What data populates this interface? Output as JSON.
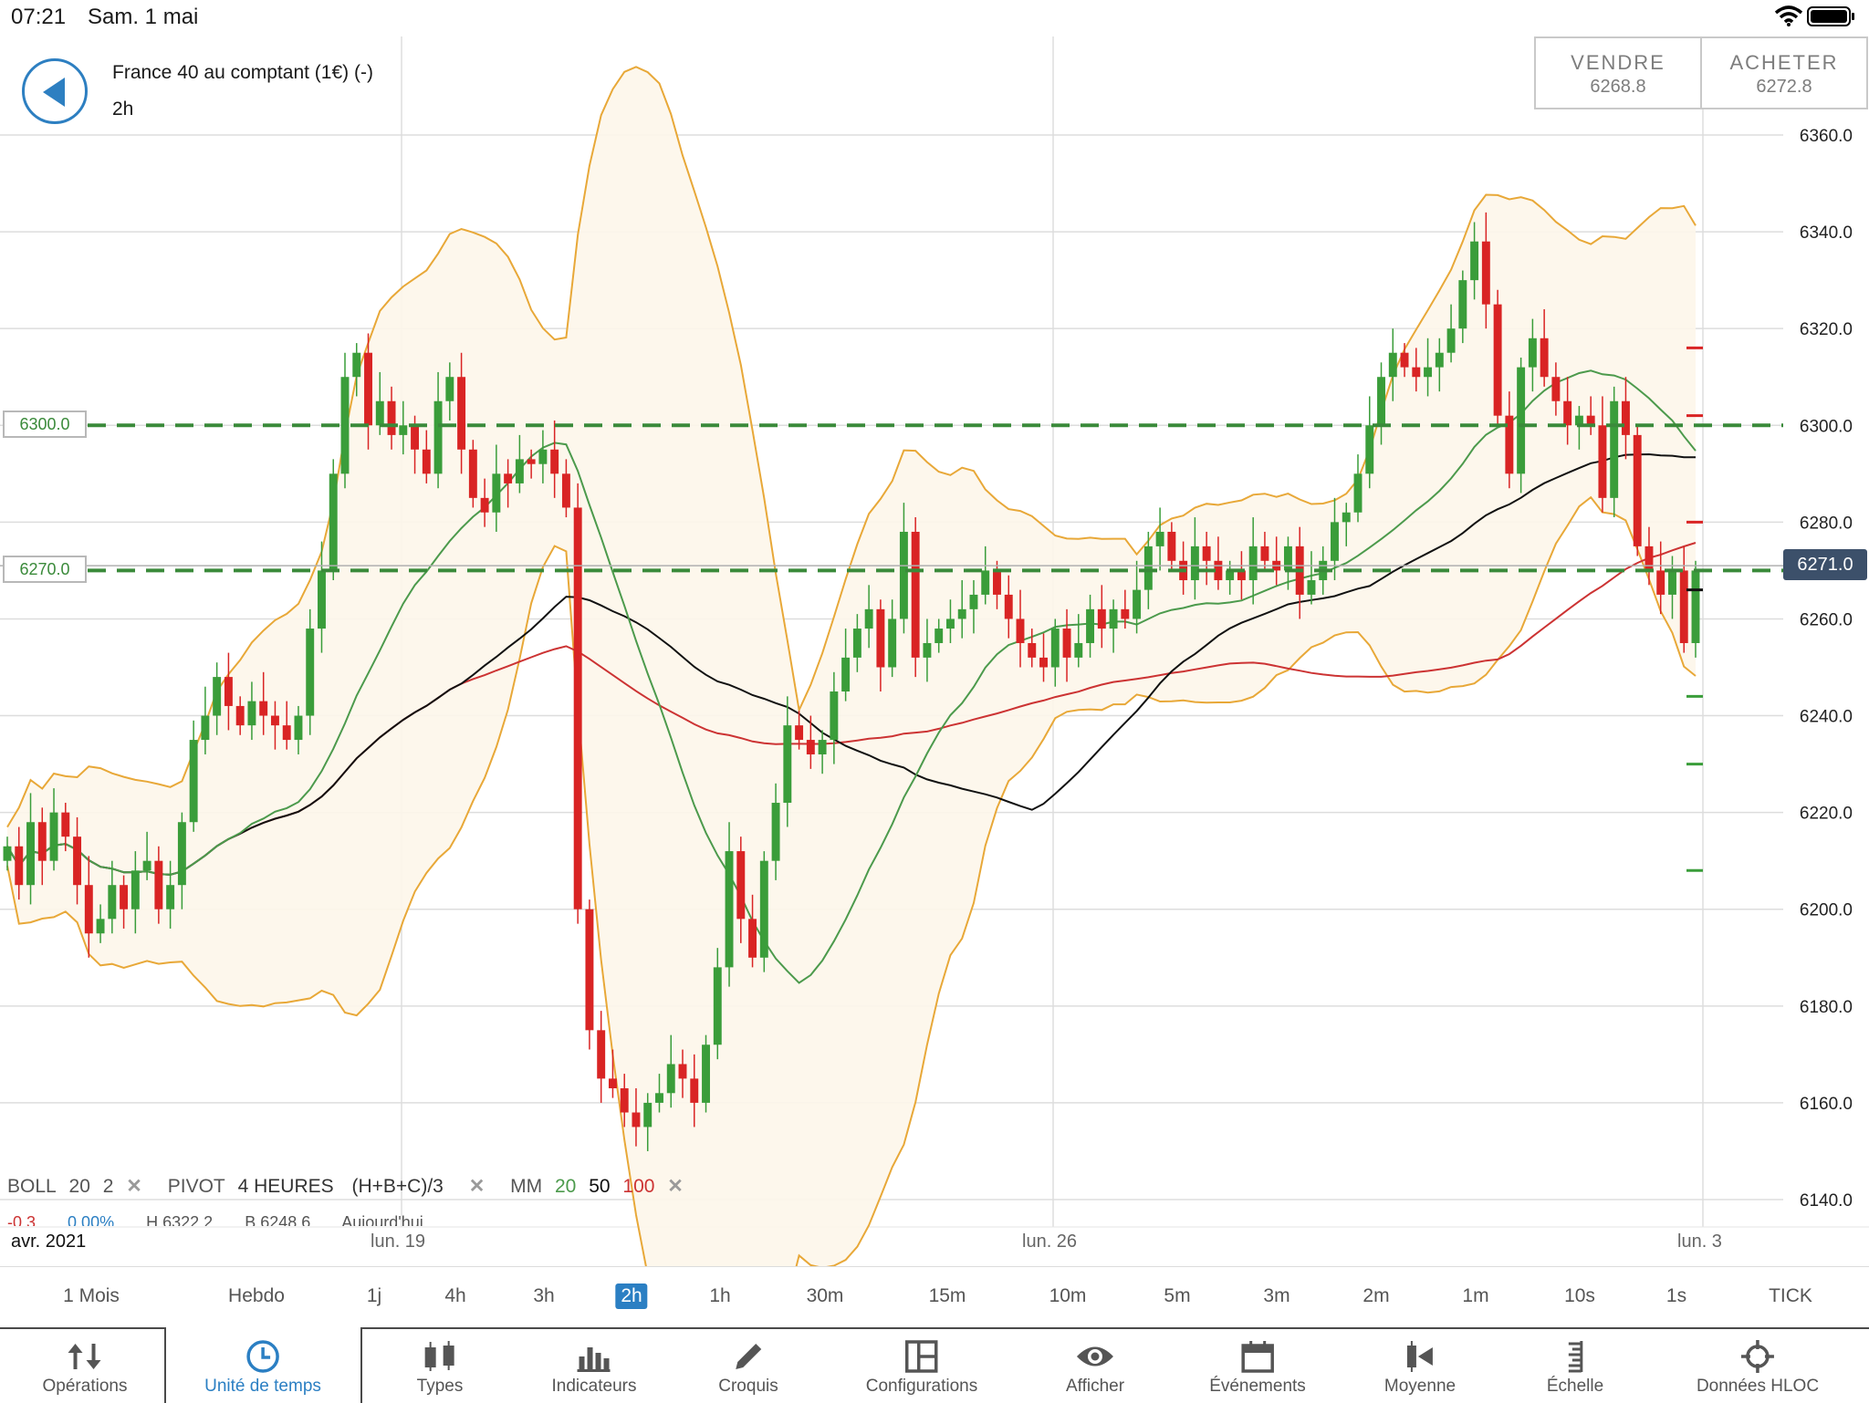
{
  "status": {
    "time": "07:21",
    "date": "Sam. 1 mai"
  },
  "instrument": {
    "name": "France 40 au comptant (1€) (-)",
    "timeframe": "2h"
  },
  "trade": {
    "sell_label": "VENDRE",
    "sell_price": "6268.8",
    "buy_label": "ACHETER",
    "buy_price": "6272.8"
  },
  "levels": [
    {
      "label": "6300.0",
      "value": 6300
    },
    {
      "label": "6270.0",
      "value": 6270
    }
  ],
  "current_price": {
    "label": "6271.0",
    "value": 6271
  },
  "indicators": {
    "boll": {
      "name": "BOLL",
      "period": "20",
      "dev": "2"
    },
    "pivot": {
      "name": "PIVOT",
      "period": "4 HEURES",
      "formula": "(H+B+C)/3"
    },
    "mm": {
      "name": "MM",
      "p1": "20",
      "p2": "50",
      "p3": "100"
    }
  },
  "info_row": [
    "-0.3",
    "0.00%",
    "H 6322.2",
    "B 6248.6",
    "Aujourd'hui"
  ],
  "x_labels": [
    {
      "text": "avr. 2021"
    },
    {
      "text": "lun. 19"
    },
    {
      "text": "lun. 26"
    },
    {
      "text": "lun. 3"
    }
  ],
  "timeframes": [
    "1 Mois",
    "Hebdo",
    "1j",
    "4h",
    "3h",
    "2h",
    "1h",
    "30m",
    "15m",
    "10m",
    "5m",
    "3m",
    "2m",
    "1m",
    "10s",
    "1s",
    "TICK"
  ],
  "active_timeframe": "2h",
  "tabs": [
    {
      "label": "Opérations",
      "icon": "arrows-updown-icon"
    },
    {
      "label": "Unité de temps",
      "icon": "clock-icon"
    },
    {
      "label": "Types",
      "icon": "candles-icon"
    },
    {
      "label": "Indicateurs",
      "icon": "bar-chart-icon"
    },
    {
      "label": "Croquis",
      "icon": "pencil-icon"
    },
    {
      "label": "Configurations",
      "icon": "layout-icon"
    },
    {
      "label": "Afficher",
      "icon": "eye-icon"
    },
    {
      "label": "Événements",
      "icon": "calendar-icon"
    },
    {
      "label": "Moyenne",
      "icon": "average-icon"
    },
    {
      "label": "Échelle",
      "icon": "scale-icon"
    },
    {
      "label": "Données HLOC",
      "icon": "crosshair-icon"
    }
  ],
  "colors": {
    "up": "#3a9d3a",
    "down": "#d92424",
    "boll": "#e8a838",
    "mm20": "#4c9a4c",
    "mm50": "#111111",
    "mm100": "#cc3333",
    "accent": "#2b7fc3"
  },
  "chart_data": {
    "type": "candlestick",
    "y_ticks": [
      "6360.0",
      "6340.0",
      "6320.0",
      "6300.0",
      "6280.0",
      "6260.0",
      "6240.0",
      "6220.0",
      "6200.0",
      "6180.0",
      "6160.0",
      "6140.0"
    ],
    "ylim": [
      6140,
      6360
    ],
    "close": [
      6213,
      6205,
      6218,
      6210,
      6220,
      6215,
      6205,
      6195,
      6198,
      6205,
      6200,
      6208,
      6210,
      6200,
      6205,
      6218,
      6235,
      6240,
      6248,
      6242,
      6238,
      6243,
      6240,
      6238,
      6235,
      6240,
      6258,
      6270,
      6290,
      6310,
      6315,
      6300,
      6305,
      6298,
      6300,
      6295,
      6290,
      6305,
      6310,
      6295,
      6285,
      6282,
      6290,
      6288,
      6293,
      6292,
      6295,
      6290,
      6283,
      6200,
      6175,
      6165,
      6163,
      6158,
      6155,
      6160,
      6162,
      6168,
      6165,
      6160,
      6172,
      6188,
      6212,
      6198,
      6190,
      6210,
      6222,
      6238,
      6235,
      6232,
      6235,
      6245,
      6252,
      6258,
      6262,
      6250,
      6260,
      6278,
      6252,
      6255,
      6258,
      6260,
      6262,
      6265,
      6270,
      6265,
      6260,
      6255,
      6252,
      6250,
      6258,
      6252,
      6255,
      6262,
      6258,
      6262,
      6260,
      6266,
      6275,
      6278,
      6272,
      6268,
      6275,
      6272,
      6268,
      6270,
      6268,
      6275,
      6272,
      6270,
      6275,
      6265,
      6268,
      6272,
      6280,
      6282,
      6290,
      6300,
      6310,
      6315,
      6312,
      6310,
      6312,
      6315,
      6320,
      6330,
      6338,
      6325,
      6302,
      6290,
      6312,
      6318,
      6310,
      6305,
      6300,
      6302,
      6300,
      6285,
      6305,
      6298,
      6275,
      6270,
      6265,
      6270,
      6255,
      6270
    ],
    "series": [
      {
        "name": "BOLL"
      },
      {
        "name": "MM 20"
      },
      {
        "name": "MM 50"
      },
      {
        "name": "MM 100"
      }
    ]
  }
}
